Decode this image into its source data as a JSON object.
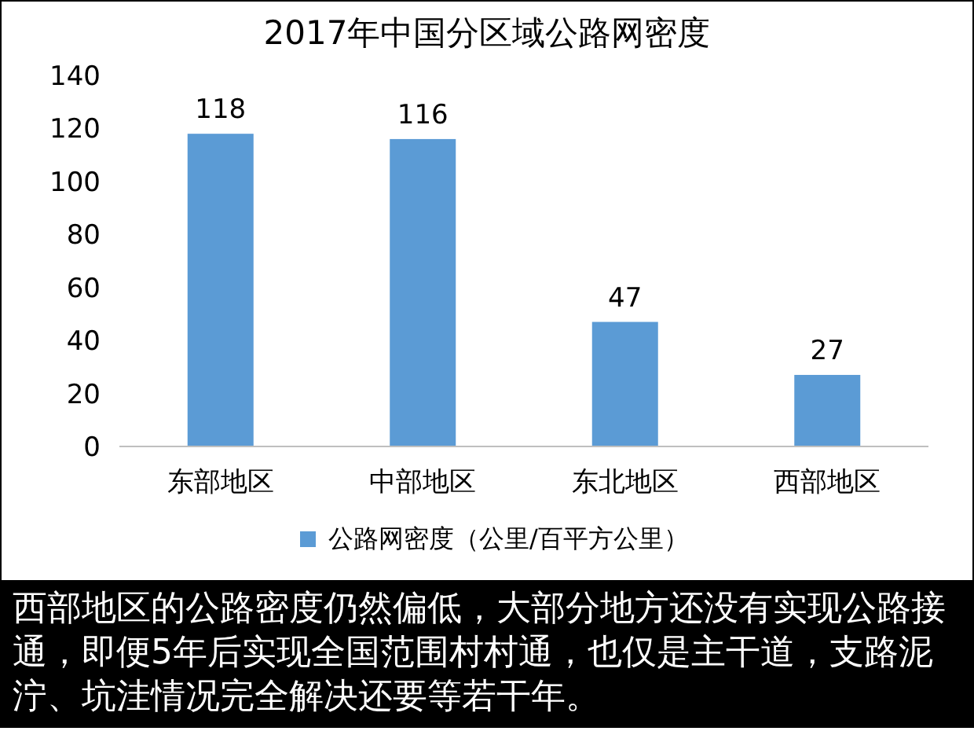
{
  "chart_data": {
    "type": "bar",
    "title": "2017年中国分区域公路网密度",
    "categories": [
      "东部地区",
      "中部地区",
      "东北地区",
      "西部地区"
    ],
    "series": [
      {
        "name": "公路网密度（公里/百平方公里）",
        "color": "#5b9bd5",
        "values": [
          118,
          116,
          47,
          27
        ]
      }
    ],
    "ylim": [
      0,
      140
    ],
    "yticks": [
      0,
      20,
      40,
      60,
      80,
      100,
      120,
      140
    ],
    "grid": false,
    "data_labels": true,
    "legend": "bottom",
    "annotations": [
      "西部地区的公路密度仍然偏低，大部分地方还没有实现公路接通，即便5年后实现全国范围村村通，也仅是主干道，支路泥泞、坑洼情况完全解决还要等若干年。"
    ]
  }
}
